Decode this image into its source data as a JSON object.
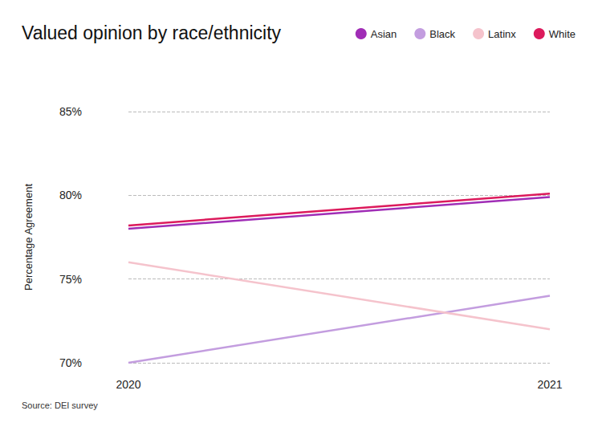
{
  "chart_data": {
    "type": "line",
    "title": "Valued opinion by race/ethnicity",
    "source": "Source: DEI survey",
    "y_label": "Percentage Agreement",
    "categories": [
      "2020",
      "2021"
    ],
    "series": [
      {
        "name": "Asian",
        "color": "#a02db6",
        "values": [
          78.0,
          79.9
        ]
      },
      {
        "name": "Black",
        "color": "#c39ddf",
        "values": [
          70.0,
          74.0
        ]
      },
      {
        "name": "Latinx",
        "color": "#f5c3cc",
        "values": [
          76.0,
          72.0
        ]
      },
      {
        "name": "White",
        "color": "#dc1a5c",
        "values": [
          78.2,
          80.1
        ]
      }
    ],
    "ylim": [
      70,
      85
    ],
    "yticks": [
      {
        "value": 70,
        "label": "70%"
      },
      {
        "value": 75,
        "label": "75%"
      },
      {
        "value": 80,
        "label": "80%"
      },
      {
        "value": 85,
        "label": "85%"
      }
    ],
    "grid": true,
    "legend": "top-right"
  }
}
